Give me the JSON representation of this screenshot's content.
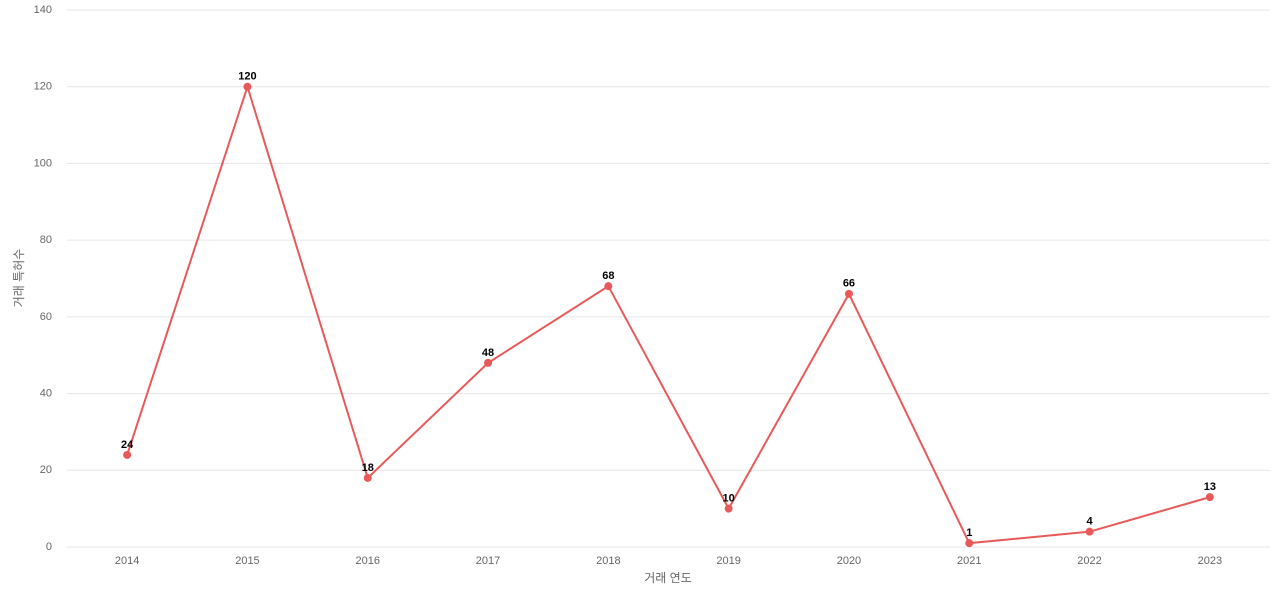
{
  "chart_data": {
    "type": "line",
    "x_label": "거래 연도",
    "y_label": "거래 특허수",
    "categories": [
      "2014",
      "2015",
      "2016",
      "2017",
      "2018",
      "2019",
      "2020",
      "2021",
      "2022",
      "2023"
    ],
    "series": [
      {
        "name": "거래 특허수",
        "color": "#e85a5a",
        "values": [
          24,
          120,
          18,
          48,
          68,
          10,
          66,
          1,
          4,
          13
        ]
      }
    ],
    "ylim": [
      0,
      140
    ],
    "yticks": [
      0,
      20,
      40,
      60,
      80,
      100,
      120,
      140
    ],
    "grid": true
  }
}
